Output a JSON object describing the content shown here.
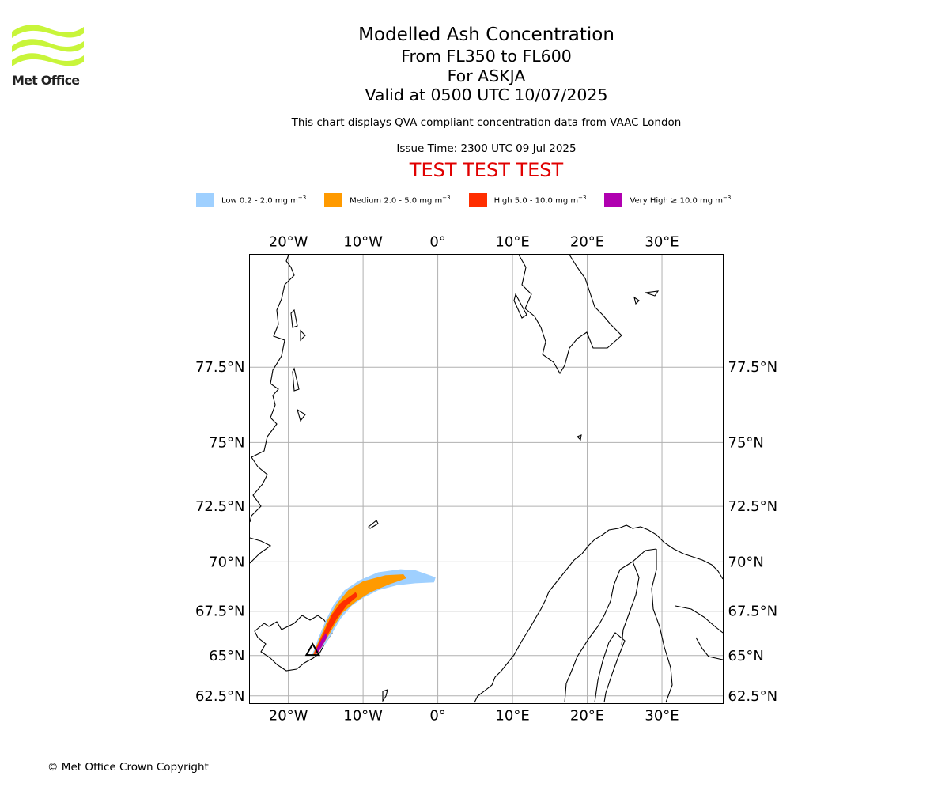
{
  "brand": {
    "name": "Met Office",
    "logo_color": "#c8f53a"
  },
  "title": {
    "main": "Modelled Ash Concentration",
    "levels": "From FL350 to FL600",
    "volcano": "For ASKJA",
    "valid": "Valid at 0500 UTC 10/07/2025"
  },
  "qva_note": "This chart displays QVA compliant concentration data from VAAC London",
  "issue_time": "Issue Time: 2300 UTC 09 Jul 2025",
  "test_banner": "TEST TEST TEST",
  "legend": {
    "items": [
      {
        "label": "Low 0.2 - 2.0 mg m",
        "unit_exp": "−3",
        "color": "#9fd0ff"
      },
      {
        "label": "Medium 2.0 - 5.0 mg m",
        "unit_exp": "−3",
        "color": "#ff9a00"
      },
      {
        "label": "High 5.0 - 10.0 mg m",
        "unit_exp": "−3",
        "color": "#ff2e00"
      },
      {
        "label": "Very High  ≥  10.0 mg m",
        "unit_exp": "−3",
        "color": "#b000b0"
      }
    ]
  },
  "map": {
    "lon_labels": [
      "20°W",
      "10°W",
      "0°",
      "10°E",
      "20°E",
      "30°E"
    ],
    "lon_values": [
      -20,
      -10,
      0,
      10,
      20,
      30
    ],
    "lat_labels": [
      "77.5°N",
      "75°N",
      "72.5°N",
      "70°N",
      "67.5°N",
      "65°N",
      "62.5°N"
    ],
    "lat_values": [
      77.5,
      75,
      72.5,
      70,
      67.5,
      65,
      62.5
    ],
    "lon_range": [
      -25.2,
      38.2
    ],
    "lat_range": [
      62.0,
      80.5
    ],
    "grid": true,
    "volcano_marker": {
      "name": "ASKJA",
      "lon": -16.75,
      "lat": 65.03
    },
    "ash_plume": [
      {
        "level": "Low",
        "polygon": [
          [
            -16.9,
            65.0
          ],
          [
            -16.5,
            65.4
          ],
          [
            -16.0,
            66.0
          ],
          [
            -15.0,
            67.0
          ],
          [
            -14.0,
            67.8
          ],
          [
            -12.5,
            68.6
          ],
          [
            -10.5,
            69.1
          ],
          [
            -8.0,
            69.5
          ],
          [
            -5.0,
            69.65
          ],
          [
            -3.0,
            69.6
          ],
          [
            -0.3,
            69.25
          ],
          [
            -0.5,
            69.0
          ],
          [
            -3.0,
            68.95
          ],
          [
            -5.5,
            68.85
          ],
          [
            -8.0,
            68.6
          ],
          [
            -10.0,
            68.2
          ],
          [
            -11.5,
            67.8
          ],
          [
            -13.0,
            67.1
          ],
          [
            -14.0,
            66.4
          ],
          [
            -15.0,
            65.7
          ],
          [
            -15.8,
            65.3
          ],
          [
            -16.3,
            65.0
          ]
        ]
      },
      {
        "level": "Medium",
        "polygon": [
          [
            -16.7,
            65.05
          ],
          [
            -16.2,
            65.6
          ],
          [
            -15.6,
            66.2
          ],
          [
            -14.8,
            67.0
          ],
          [
            -13.5,
            67.9
          ],
          [
            -12.0,
            68.6
          ],
          [
            -10.0,
            69.05
          ],
          [
            -7.0,
            69.35
          ],
          [
            -4.6,
            69.4
          ],
          [
            -4.2,
            69.2
          ],
          [
            -6.5,
            68.9
          ],
          [
            -9.0,
            68.5
          ],
          [
            -11.0,
            68.0
          ],
          [
            -12.8,
            67.4
          ],
          [
            -14.0,
            66.6
          ],
          [
            -15.0,
            65.9
          ],
          [
            -15.8,
            65.3
          ],
          [
            -16.3,
            65.05
          ]
        ]
      },
      {
        "level": "High",
        "polygon": [
          [
            -16.6,
            65.1
          ],
          [
            -16.1,
            65.6
          ],
          [
            -15.3,
            66.3
          ],
          [
            -14.2,
            67.3
          ],
          [
            -13.0,
            67.95
          ],
          [
            -11.0,
            68.5
          ],
          [
            -10.7,
            68.3
          ],
          [
            -12.2,
            67.8
          ],
          [
            -13.5,
            67.1
          ],
          [
            -14.6,
            66.3
          ],
          [
            -15.6,
            65.5
          ],
          [
            -16.2,
            65.1
          ]
        ]
      },
      {
        "level": "Very High",
        "polygon": [
          [
            -16.5,
            65.1
          ],
          [
            -16.2,
            65.4
          ],
          [
            -15.6,
            65.9
          ],
          [
            -15.0,
            66.3
          ],
          [
            -14.8,
            66.1
          ],
          [
            -15.4,
            65.6
          ],
          [
            -16.0,
            65.2
          ]
        ]
      }
    ]
  },
  "copyright": "© Met Office Crown Copyright"
}
